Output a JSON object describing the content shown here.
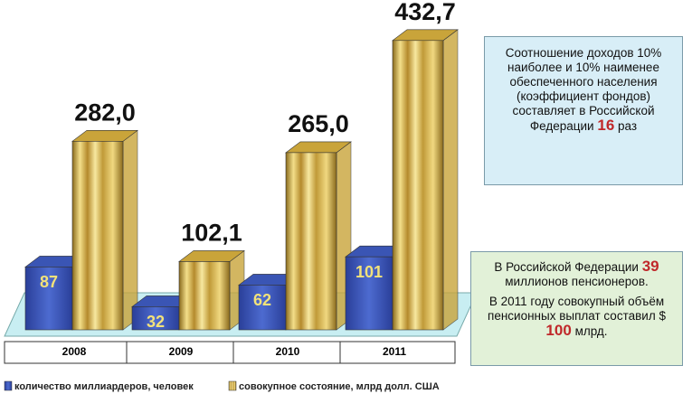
{
  "chart_data": {
    "type": "bar3d",
    "categories": [
      "2008",
      "2009",
      "2010",
      "2011"
    ],
    "series": [
      {
        "name": "количество миллиардеров, человек",
        "color": "#3a55b4",
        "values": [
          87,
          32,
          62,
          101
        ]
      },
      {
        "name": "совокупное состояние, млрд долл. США",
        "color": "#c9a43a",
        "values": [
          282.0,
          102.1,
          265.0,
          432.7
        ],
        "value_labels": [
          "282,0",
          "102,1",
          "265,0",
          "432,7"
        ]
      }
    ],
    "notes": [
      {
        "paragraphs": [
          [
            {
              "text": "Соотношение доходов 10% наиболее и 10% наименее обеспеченного населения (коэффициент фондов) составляет в Российской Федерации"
            },
            {
              "text": "16",
              "emphasis": true
            },
            {
              "text": "раз"
            }
          ]
        ]
      },
      {
        "paragraphs": [
          [
            {
              "text": "В Российской Федерации"
            },
            {
              "text": "39",
              "emphasis": true
            },
            {
              "text": "миллионов пенсионеров."
            }
          ],
          [
            {
              "text": "В 2011 году совокупный объём пенсионных выплат составил $"
            },
            {
              "text": "100",
              "emphasis": true
            },
            {
              "text": "млрд."
            }
          ]
        ]
      }
    ]
  }
}
